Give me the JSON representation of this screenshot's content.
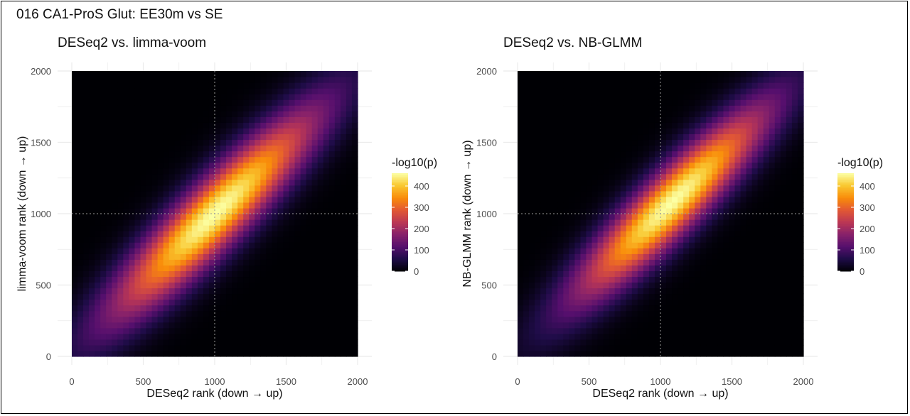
{
  "figure": {
    "title": "016 CA1-ProS Glut: EE30m vs SE"
  },
  "chart_data": [
    {
      "type": "heatmap",
      "title": "DESeq2 vs. limma-voom",
      "xlabel": "DESeq2 rank (down → up)",
      "ylabel": "limma-voom rank (down → up)",
      "xlim": [
        0,
        2000
      ],
      "ylim": [
        0,
        2000
      ],
      "x_ticks": [
        "0",
        "500",
        "1000",
        "1500",
        "2000"
      ],
      "y_ticks": [
        "0",
        "500",
        "1000",
        "1500",
        "2000"
      ],
      "reference_lines": {
        "x": 1000,
        "y": 1000,
        "style": "dotted"
      },
      "grid": true,
      "legend_position": "right",
      "legend": {
        "title": "-log10(p)",
        "min": 0,
        "max": 460,
        "ticks": [
          "0",
          "100",
          "200",
          "300",
          "400"
        ],
        "colormap": "inferno"
      },
      "density_model": {
        "peak_x": 1000,
        "peak_y": 1000,
        "peak_value": 460,
        "diagonal_spread": 700,
        "perpendicular_spread": 150
      }
    },
    {
      "type": "heatmap",
      "title": "DESeq2 vs. NB-GLMM",
      "xlabel": "DESeq2 rank (down → up)",
      "ylabel": "NB-GLMM rank (down → up)",
      "xlim": [
        0,
        2000
      ],
      "ylim": [
        0,
        2000
      ],
      "x_ticks": [
        "0",
        "500",
        "1000",
        "1500",
        "2000"
      ],
      "y_ticks": [
        "0",
        "500",
        "1000",
        "1500",
        "2000"
      ],
      "reference_lines": {
        "x": 1000,
        "y": 1000,
        "style": "dotted"
      },
      "grid": true,
      "legend_position": "right",
      "legend": {
        "title": "-log10(p)",
        "min": 0,
        "max": 460,
        "ticks": [
          "0",
          "100",
          "200",
          "300",
          "400"
        ],
        "colormap": "inferno"
      },
      "density_model": {
        "peak_x": 1080,
        "peak_y": 1080,
        "peak_value": 460,
        "diagonal_spread": 650,
        "perpendicular_spread": 140
      }
    }
  ]
}
